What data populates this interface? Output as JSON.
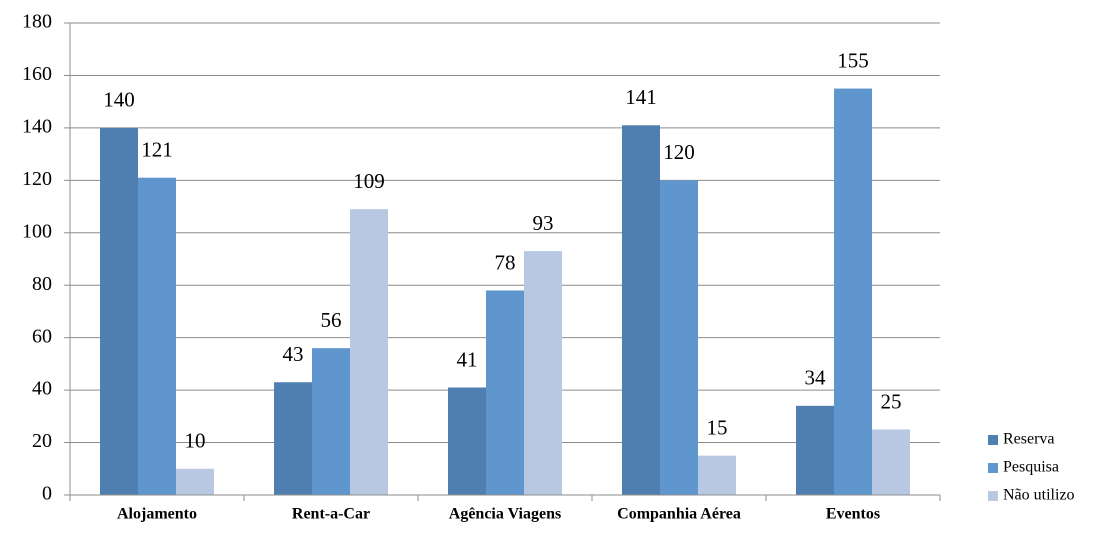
{
  "chart_data": {
    "type": "bar",
    "categories": [
      "Alojamento",
      "Rent-a-Car",
      "Agência Viagens",
      "Companhia Aérea",
      "Eventos"
    ],
    "series": [
      {
        "name": "Reserva",
        "color": "#4f7fb0",
        "values": [
          140,
          43,
          41,
          141,
          34
        ]
      },
      {
        "name": "Pesquisa",
        "color": "#5f96cd",
        "values": [
          121,
          56,
          78,
          120,
          155
        ]
      },
      {
        "name": "Não utilizo",
        "color": "#b8c8e3",
        "values": [
          10,
          109,
          93,
          15,
          25
        ]
      }
    ],
    "ylim": [
      0,
      180
    ],
    "yticks": [
      0,
      20,
      40,
      60,
      80,
      100,
      120,
      140,
      160,
      180
    ],
    "grid": true,
    "legend": "right"
  }
}
